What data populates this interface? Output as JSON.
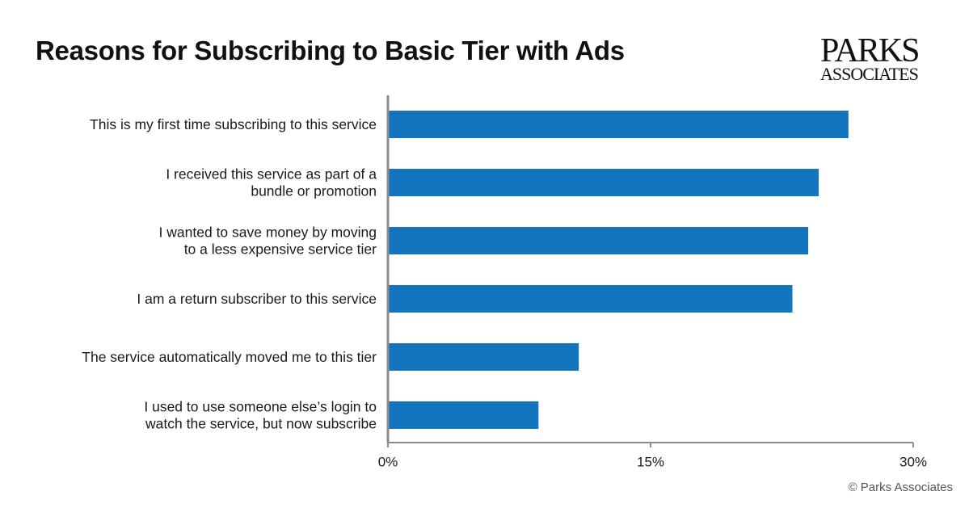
{
  "header": {
    "title": "Reasons for Subscribing to Basic Tier with Ads"
  },
  "logo": {
    "line1": "PARKS",
    "line2": "ASSOCIATES"
  },
  "footer": {
    "copyright": "© Parks Associates"
  },
  "colors": {
    "bar": "#1375BD",
    "axis": "#8C8C8C",
    "text": "#1A1A1A"
  },
  "chart_data": {
    "type": "bar",
    "orientation": "horizontal",
    "title": "Reasons for Subscribing to Basic Tier with Ads",
    "xlabel": "",
    "ylabel": "",
    "xlim": [
      0,
      30
    ],
    "ticks": [
      {
        "value": 0,
        "label": "0%"
      },
      {
        "value": 15,
        "label": "15%"
      },
      {
        "value": 30,
        "label": "30%"
      }
    ],
    "grid": false,
    "legend": "none",
    "categories": [
      [
        "This is my first time subscribing to this service"
      ],
      [
        "I received this service as part of a",
        "bundle or promotion"
      ],
      [
        "I wanted to save money by moving",
        "to a less expensive service tier"
      ],
      [
        "I am a return subscriber to this service"
      ],
      [
        "The service automatically moved me to this tier"
      ],
      [
        "I used to use someone else’s login to",
        "watch the service, but now subscribe"
      ]
    ],
    "values": [
      26.3,
      24.6,
      24.0,
      23.1,
      10.9,
      8.6
    ]
  }
}
